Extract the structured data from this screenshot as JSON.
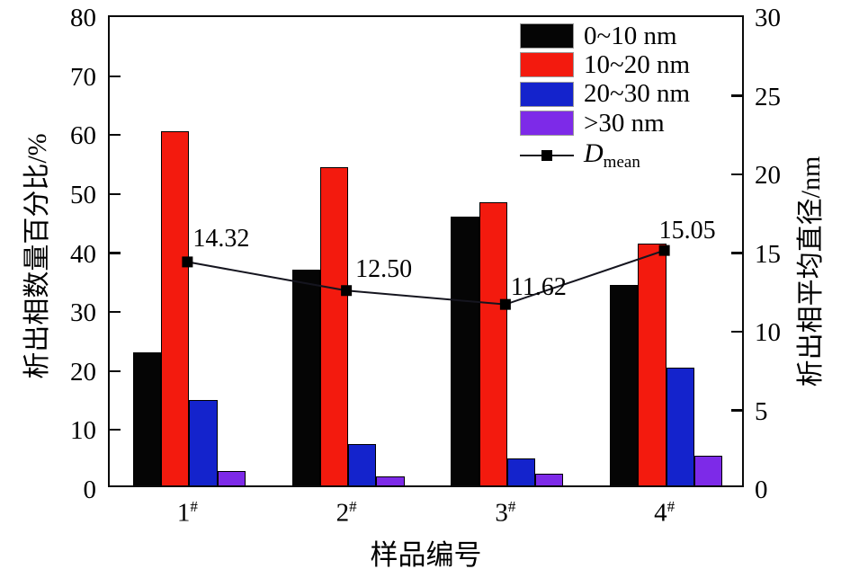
{
  "figure": {
    "background": "#ffffff"
  },
  "chart_data": {
    "type": "bar",
    "title": "",
    "categories": [
      "1#",
      "2#",
      "3#",
      "4#"
    ],
    "x_title": "样品编号",
    "left_axis": {
      "title": "析出相数量百分比/%",
      "min": 0,
      "max": 80,
      "ticks": [
        0,
        10,
        20,
        30,
        40,
        50,
        60,
        70,
        80
      ]
    },
    "right_axis": {
      "title": "析出相平均直径/nm",
      "min": 0,
      "max": 30,
      "ticks": [
        0,
        5,
        10,
        15,
        20,
        25,
        30
      ]
    },
    "series": [
      {
        "name": "0~10 nm",
        "type": "bar",
        "color": "#050505",
        "values": [
          22.5,
          36.5,
          45.5,
          34
        ]
      },
      {
        "name": "10~20 nm",
        "type": "bar",
        "color": "#f31a0e",
        "values": [
          60,
          54,
          48,
          41
        ]
      },
      {
        "name": "20~30 nm",
        "type": "bar",
        "color": "#1423cc",
        "values": [
          14.5,
          7,
          4.5,
          20
        ]
      },
      {
        "name": ">30 nm",
        "type": "bar",
        "color": "#7d2ae8",
        "values": [
          2.5,
          1.5,
          2,
          5
        ]
      }
    ],
    "line_series": {
      "name": "Dmean",
      "name_main": "D",
      "name_sub": "mean",
      "axis": "right",
      "color": "#15151f",
      "marker": "square",
      "values": [
        14.32,
        12.5,
        11.62,
        15.05
      ],
      "point_labels": [
        "14.32",
        "12.50",
        "11.62",
        "15.05"
      ]
    },
    "legend_position": "top-right",
    "grid": false
  }
}
